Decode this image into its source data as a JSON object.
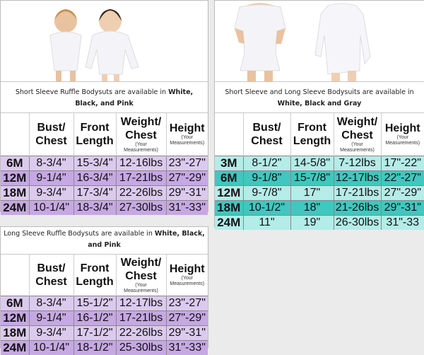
{
  "headers": {
    "bust": "Bust/",
    "chest": "Chest",
    "front": "Front",
    "length": "Length",
    "weight": "Weight/",
    "weight_chest": "Chest",
    "your": "(Your",
    "measurements": "Measurements)",
    "height": "Height"
  },
  "short_ruffle": {
    "caption_plain": "Short Sleeve Ruffle Bodysuts are available in ",
    "caption_bold": "White, Black, and Pink",
    "rows": [
      [
        "6M",
        "8-3/4\"",
        "15-3/4\"",
        "12-16lbs",
        "23\"-27\""
      ],
      [
        "12M",
        "9-1/4\"",
        "16-3/4\"",
        "17-21lbs",
        "27\"-29\""
      ],
      [
        "18M",
        "9-3/4\"",
        "17-3/4\"",
        "22-26lbs",
        "29\"-31\""
      ],
      [
        "24M",
        "10-1/4\"",
        "18-3/4\"",
        "27-30lbs",
        "31\"-33\""
      ]
    ]
  },
  "long_ruffle": {
    "caption_plain": "Long Sleeve Ruffle Bodysuts are available in ",
    "caption_bold": "White, Black, and Pink",
    "rows": [
      [
        "6M",
        "8-3/4\"",
        "15-1/2\"",
        "12-17lbs",
        "23\"-27\""
      ],
      [
        "12M",
        "9-1/4\"",
        "16-1/2\"",
        "17-21lbs",
        "27\"-29\""
      ],
      [
        "18M",
        "9-3/4\"",
        "17-1/2\"",
        "22-26lbs",
        "29\"-31\""
      ],
      [
        "24M",
        "10-1/4\"",
        "18-1/2\"",
        "25-30lbs",
        "31\"-33\""
      ]
    ]
  },
  "bodysuits": {
    "caption_plain": "Short Sleeve and Long Sleeve Bodysuits are available in ",
    "caption_bold": "White, Black and Gray",
    "rows": [
      [
        "3M",
        "8-1/2\"",
        "14-5/8\"",
        "7-12lbs",
        "17\"-22\""
      ],
      [
        "6M",
        "9-1/8\"",
        "15-7/8\"",
        "12-17lbs",
        "22\"-27\""
      ],
      [
        "12M",
        "9-7/8\"",
        "17\"",
        "17-21lbs",
        "27\"-29\""
      ],
      [
        "18M",
        "10-1/2\"",
        "18\"",
        "21-26lbs",
        "29\"-31\""
      ],
      [
        "24M",
        "11\"",
        "19\"",
        "26-30lbs",
        "31\"-33"
      ]
    ]
  },
  "colors": {
    "purple_light": "#dccaee",
    "purple_dark": "#c6a8e2",
    "teal_light": "#b4ece8",
    "teal_dark": "#40c7bf"
  }
}
